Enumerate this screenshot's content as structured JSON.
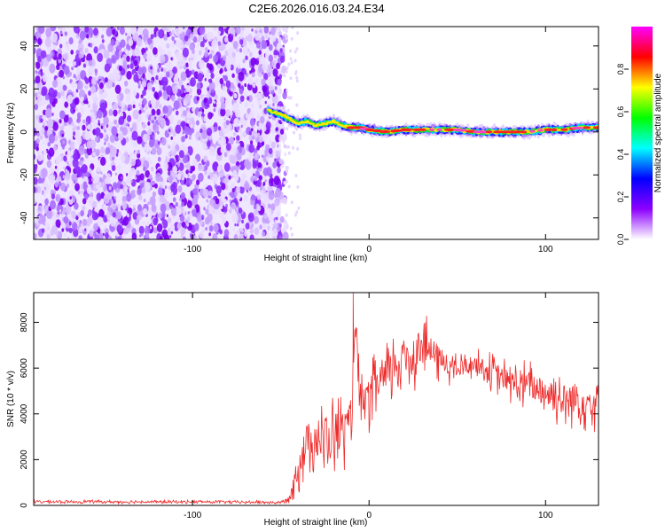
{
  "title": "C2E6.2026.016.03.24.E34",
  "chart_data": [
    {
      "type": "heatmap",
      "name": "spectrogram",
      "xlabel": "Height of straight line (km)",
      "ylabel": "Frequency (Hz)",
      "xlim": [
        -190,
        130
      ],
      "ylim": [
        -50,
        49
      ],
      "xticks": [
        -100,
        0,
        100
      ],
      "yticks": [
        -40,
        -20,
        0,
        20,
        40
      ],
      "noise_region_x": [
        -190,
        -50
      ],
      "signal_region_x": [
        -57,
        130
      ],
      "signal_track": {
        "x": [
          -57,
          -50,
          -45,
          -40,
          -35,
          -30,
          -25,
          -20,
          -15,
          -10,
          -5,
          0,
          10,
          20,
          30,
          40,
          50,
          60,
          70,
          80,
          90,
          100,
          110,
          120,
          130
        ],
        "freq": [
          10,
          8,
          6,
          4,
          5,
          3,
          4,
          5,
          3,
          2,
          2,
          1,
          0,
          1,
          1,
          1,
          1,
          0,
          0,
          0,
          0,
          1,
          1,
          2,
          2
        ]
      },
      "colorbar": {
        "label": "Normalized spectral amplitude",
        "range": [
          0,
          1
        ],
        "ticks": [
          "0.0",
          "0.2",
          "0.4",
          "0.6",
          "0.8"
        ],
        "colors": [
          "#ffffff",
          "#8c00ff",
          "#0000ff",
          "#00ffff",
          "#00ff00",
          "#ffff00",
          "#ff0000",
          "#ff00ff"
        ]
      }
    },
    {
      "type": "line",
      "name": "snr",
      "xlabel": "Height of straight line (km)",
      "ylabel": "SNR (10 * v/v)",
      "xlim": [
        -190,
        130
      ],
      "ylim": [
        0,
        9300
      ],
      "xticks": [
        -100,
        0,
        100
      ],
      "yticks": [
        0,
        2000,
        4000,
        6000,
        8000
      ],
      "color": "#ee2b2b",
      "x": [
        -190,
        -180,
        -170,
        -160,
        -150,
        -140,
        -130,
        -120,
        -110,
        -100,
        -90,
        -80,
        -70,
        -60,
        -50,
        -45,
        -40,
        -35,
        -30,
        -25,
        -20,
        -15,
        -10,
        -8,
        -5,
        0,
        5,
        10,
        15,
        20,
        25,
        30,
        35,
        40,
        45,
        50,
        55,
        60,
        65,
        70,
        75,
        80,
        85,
        90,
        95,
        100,
        105,
        110,
        115,
        120,
        125,
        130
      ],
      "y": [
        150,
        160,
        150,
        170,
        160,
        150,
        160,
        150,
        150,
        160,
        150,
        150,
        140,
        140,
        120,
        300,
        1800,
        2800,
        3000,
        2600,
        3100,
        3300,
        3400,
        8200,
        4200,
        4700,
        5300,
        5600,
        6200,
        6400,
        6600,
        7000,
        6700,
        6400,
        6100,
        5900,
        6100,
        6200,
        6000,
        5800,
        5600,
        5400,
        5200,
        5300,
        5100,
        5000,
        4800,
        4600,
        4700,
        4600,
        4500,
        4600
      ],
      "noise_amplitude": [
        80,
        80,
        80,
        80,
        80,
        80,
        80,
        80,
        80,
        80,
        80,
        80,
        80,
        80,
        80,
        200,
        1400,
        1600,
        1700,
        1800,
        1900,
        1800,
        1700,
        1000,
        1500,
        1600,
        1600,
        1600,
        1600,
        1700,
        1700,
        1600,
        1300,
        1100,
        900,
        700,
        700,
        700,
        800,
        900,
        900,
        1000,
        1100,
        1200,
        1200,
        1300,
        1300,
        1400,
        1400,
        1400,
        1400,
        1400
      ]
    }
  ]
}
